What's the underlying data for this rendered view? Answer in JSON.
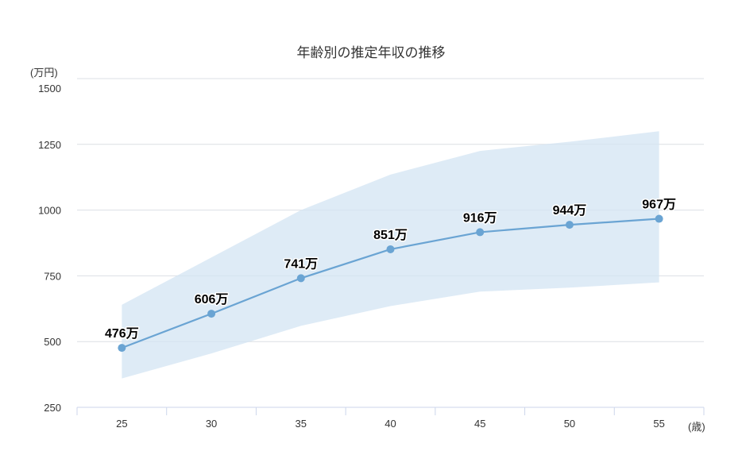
{
  "chart_data": {
    "type": "line",
    "title": "年齢別の推定年収の推移",
    "ylabel": "(万円)",
    "xlabel": "(歳)",
    "categories": [
      "25",
      "30",
      "35",
      "40",
      "45",
      "50",
      "55"
    ],
    "ylim": [
      250,
      1500
    ],
    "yticks": [
      250,
      500,
      750,
      1000,
      1250,
      1500
    ],
    "grid": true,
    "legend": false,
    "series": [
      {
        "values": [
          476,
          606,
          741,
          851,
          916,
          944,
          967
        ],
        "labels": [
          "476万",
          "606万",
          "741万",
          "851万",
          "916万",
          "944万",
          "967万"
        ],
        "color": "#6aa4d3"
      }
    ],
    "range": {
      "low": [
        360,
        455,
        560,
        635,
        690,
        705,
        725
      ],
      "high": [
        640,
        820,
        1000,
        1135,
        1225,
        1260,
        1300
      ],
      "color": "#d3e4f3"
    }
  }
}
